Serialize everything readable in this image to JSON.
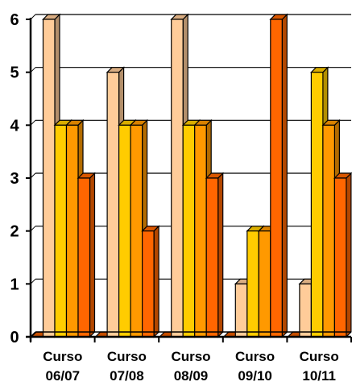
{
  "chart_data": {
    "type": "bar",
    "categories": [
      "Curso 06/07",
      "Curso 07/08",
      "Curso 08/09",
      "Curso 09/10",
      "Curso 10/11"
    ],
    "category_lines": [
      [
        "Curso",
        "06/07"
      ],
      [
        "Curso",
        "07/08"
      ],
      [
        "Curso",
        "08/09"
      ],
      [
        "Curso",
        "09/10"
      ],
      [
        "Curso",
        "10/11"
      ]
    ],
    "series": [
      {
        "values": [
          0,
          0,
          0,
          0,
          0
        ],
        "color": "#E65C00"
      },
      {
        "values": [
          6,
          5,
          6,
          1,
          1
        ],
        "color": "#FFCC99"
      },
      {
        "values": [
          4,
          4,
          4,
          2,
          5
        ],
        "color": "#FFCC00"
      },
      {
        "values": [
          4,
          4,
          4,
          2,
          4
        ],
        "color": "#FF9900"
      },
      {
        "values": [
          3,
          2,
          3,
          6,
          3
        ],
        "color": "#FF6600"
      }
    ],
    "yticks": [
      0,
      1,
      2,
      3,
      4,
      5,
      6
    ],
    "ylim": [
      0,
      6
    ],
    "grid": true,
    "three_d": true,
    "title": "",
    "xlabel": "",
    "ylabel": ""
  }
}
